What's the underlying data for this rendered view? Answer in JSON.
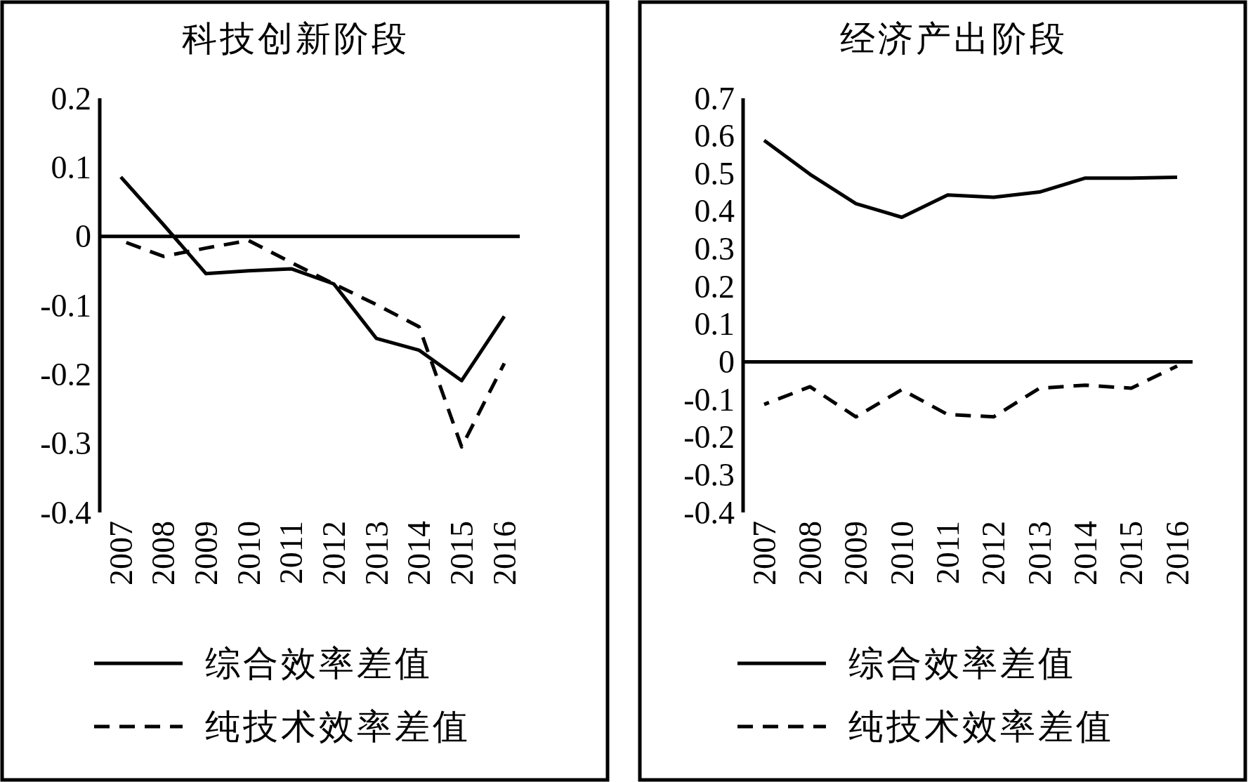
{
  "chart_data": [
    {
      "type": "line",
      "title": "科技创新阶段",
      "categories": [
        "2007",
        "2008",
        "2009",
        "2010",
        "2011",
        "2012",
        "2013",
        "2014",
        "2015",
        "2016"
      ],
      "ylim": [
        -0.4,
        0.2
      ],
      "yticks": [
        -0.4,
        -0.3,
        -0.2,
        -0.1,
        0,
        0.1,
        0.2
      ],
      "legend": "bottom",
      "grid": false,
      "ref_lines": [
        {
          "axis": "y",
          "value": 0,
          "color": "#000000",
          "line_style": "solid"
        }
      ],
      "series": [
        {
          "name": "综合效率差值",
          "color": "#000000",
          "line_style": "solid",
          "values": [
            0.086,
            0.017,
            -0.054,
            -0.05,
            -0.047,
            -0.069,
            -0.148,
            -0.165,
            -0.209,
            -0.116
          ]
        },
        {
          "name": "纯技术效率差值",
          "color": "#000000",
          "line_style": "dashed",
          "values": [
            -0.006,
            -0.029,
            -0.017,
            -0.006,
            -0.038,
            -0.069,
            -0.099,
            -0.131,
            -0.305,
            -0.184
          ]
        }
      ]
    },
    {
      "type": "line",
      "title": "经济产出阶段",
      "categories": [
        "2007",
        "2008",
        "2009",
        "2010",
        "2011",
        "2012",
        "2013",
        "2014",
        "2015",
        "2016"
      ],
      "ylim": [
        -0.4,
        0.7
      ],
      "yticks": [
        -0.4,
        -0.3,
        -0.2,
        -0.1,
        0,
        0.1,
        0.2,
        0.3,
        0.4,
        0.5,
        0.6,
        0.7
      ],
      "legend": "bottom",
      "grid": false,
      "ref_lines": [
        {
          "axis": "y",
          "value": 0,
          "color": "#000000",
          "line_style": "solid"
        }
      ],
      "series": [
        {
          "name": "综合效率差值",
          "color": "#000000",
          "line_style": "solid",
          "values": [
            0.588,
            0.498,
            0.42,
            0.384,
            0.443,
            0.437,
            0.451,
            0.488,
            0.488,
            0.49
          ]
        },
        {
          "name": "纯技术效率差值",
          "color": "#000000",
          "line_style": "dashed",
          "values": [
            -0.113,
            -0.066,
            -0.146,
            -0.074,
            -0.14,
            -0.146,
            -0.07,
            -0.062,
            -0.07,
            -0.011
          ]
        }
      ]
    }
  ]
}
